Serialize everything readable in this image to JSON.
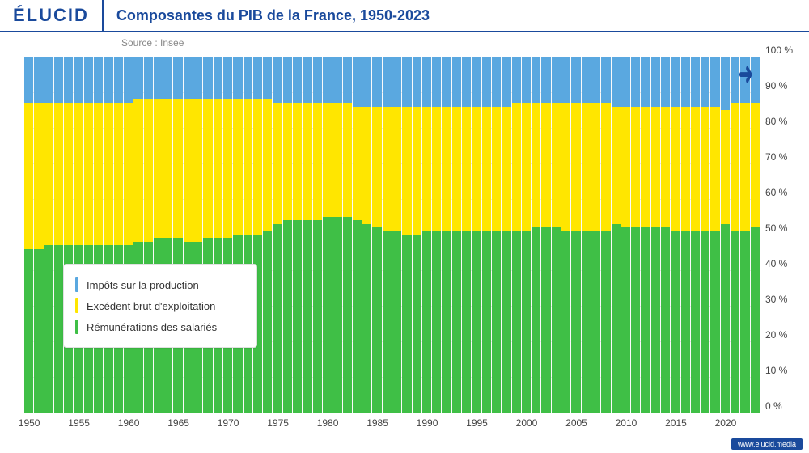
{
  "header": {
    "logo": "ÉLUCID",
    "title": "Composantes du PIB de la France, 1950-2023",
    "source": "Source : Insee"
  },
  "footer": {
    "link": "www.elucid.media"
  },
  "chart": {
    "type": "stacked-bar",
    "background_color": "#fafafa",
    "ylim": [
      0,
      100
    ],
    "ytick_step": 10,
    "y_unit": " %",
    "xtick_start": 1950,
    "xtick_end": 2020,
    "xtick_step": 5,
    "grid_color": "#e5e5e5",
    "series": [
      {
        "key": "remun",
        "label": "Rémunérations des salariés",
        "color": "#3fbf46"
      },
      {
        "key": "ebe",
        "label": "Excédent brut d'exploitation",
        "color": "#ffe600"
      },
      {
        "key": "impots",
        "label": "Impôts sur la production",
        "color": "#5aa8e0"
      }
    ],
    "years": [
      1950,
      1951,
      1952,
      1953,
      1954,
      1955,
      1956,
      1957,
      1958,
      1959,
      1960,
      1961,
      1962,
      1963,
      1964,
      1965,
      1966,
      1967,
      1968,
      1969,
      1970,
      1971,
      1972,
      1973,
      1974,
      1975,
      1976,
      1977,
      1978,
      1979,
      1980,
      1981,
      1982,
      1983,
      1984,
      1985,
      1986,
      1987,
      1988,
      1989,
      1990,
      1991,
      1992,
      1993,
      1994,
      1995,
      1996,
      1997,
      1998,
      1999,
      2000,
      2001,
      2002,
      2003,
      2004,
      2005,
      2006,
      2007,
      2008,
      2009,
      2010,
      2011,
      2012,
      2013,
      2014,
      2015,
      2016,
      2017,
      2018,
      2019,
      2020,
      2021,
      2022,
      2023
    ],
    "values": {
      "remun": [
        46,
        46,
        47,
        47,
        47,
        47,
        47,
        47,
        47,
        47,
        47,
        48,
        48,
        49,
        49,
        49,
        48,
        48,
        49,
        49,
        49,
        50,
        50,
        50,
        51,
        53,
        54,
        54,
        54,
        54,
        55,
        55,
        55,
        54,
        53,
        52,
        51,
        51,
        50,
        50,
        51,
        51,
        51,
        51,
        51,
        51,
        51,
        51,
        51,
        51,
        51,
        52,
        52,
        52,
        51,
        51,
        51,
        51,
        51,
        53,
        52,
        52,
        52,
        52,
        52,
        51,
        51,
        51,
        51,
        51,
        53,
        51,
        51,
        52
      ],
      "ebe": [
        41,
        41,
        40,
        40,
        40,
        40,
        40,
        40,
        40,
        40,
        40,
        40,
        40,
        39,
        39,
        39,
        40,
        40,
        39,
        39,
        39,
        38,
        38,
        38,
        37,
        34,
        33,
        33,
        33,
        33,
        32,
        32,
        32,
        32,
        33,
        34,
        35,
        35,
        36,
        36,
        35,
        35,
        35,
        35,
        35,
        35,
        35,
        35,
        35,
        36,
        36,
        35,
        35,
        35,
        36,
        36,
        36,
        36,
        36,
        33,
        34,
        34,
        34,
        34,
        34,
        35,
        35,
        35,
        35,
        35,
        32,
        36,
        36,
        35
      ],
      "impots": [
        13,
        13,
        13,
        13,
        13,
        13,
        13,
        13,
        13,
        13,
        13,
        12,
        12,
        12,
        12,
        12,
        12,
        12,
        12,
        12,
        12,
        12,
        12,
        12,
        12,
        13,
        13,
        13,
        13,
        13,
        13,
        13,
        13,
        14,
        14,
        14,
        14,
        14,
        14,
        14,
        14,
        14,
        14,
        14,
        14,
        14,
        14,
        14,
        14,
        13,
        13,
        13,
        13,
        13,
        13,
        13,
        13,
        13,
        13,
        14,
        14,
        14,
        14,
        14,
        14,
        14,
        14,
        14,
        14,
        14,
        15,
        13,
        13,
        13
      ]
    }
  },
  "legend": {
    "title_fontsize": 13
  }
}
